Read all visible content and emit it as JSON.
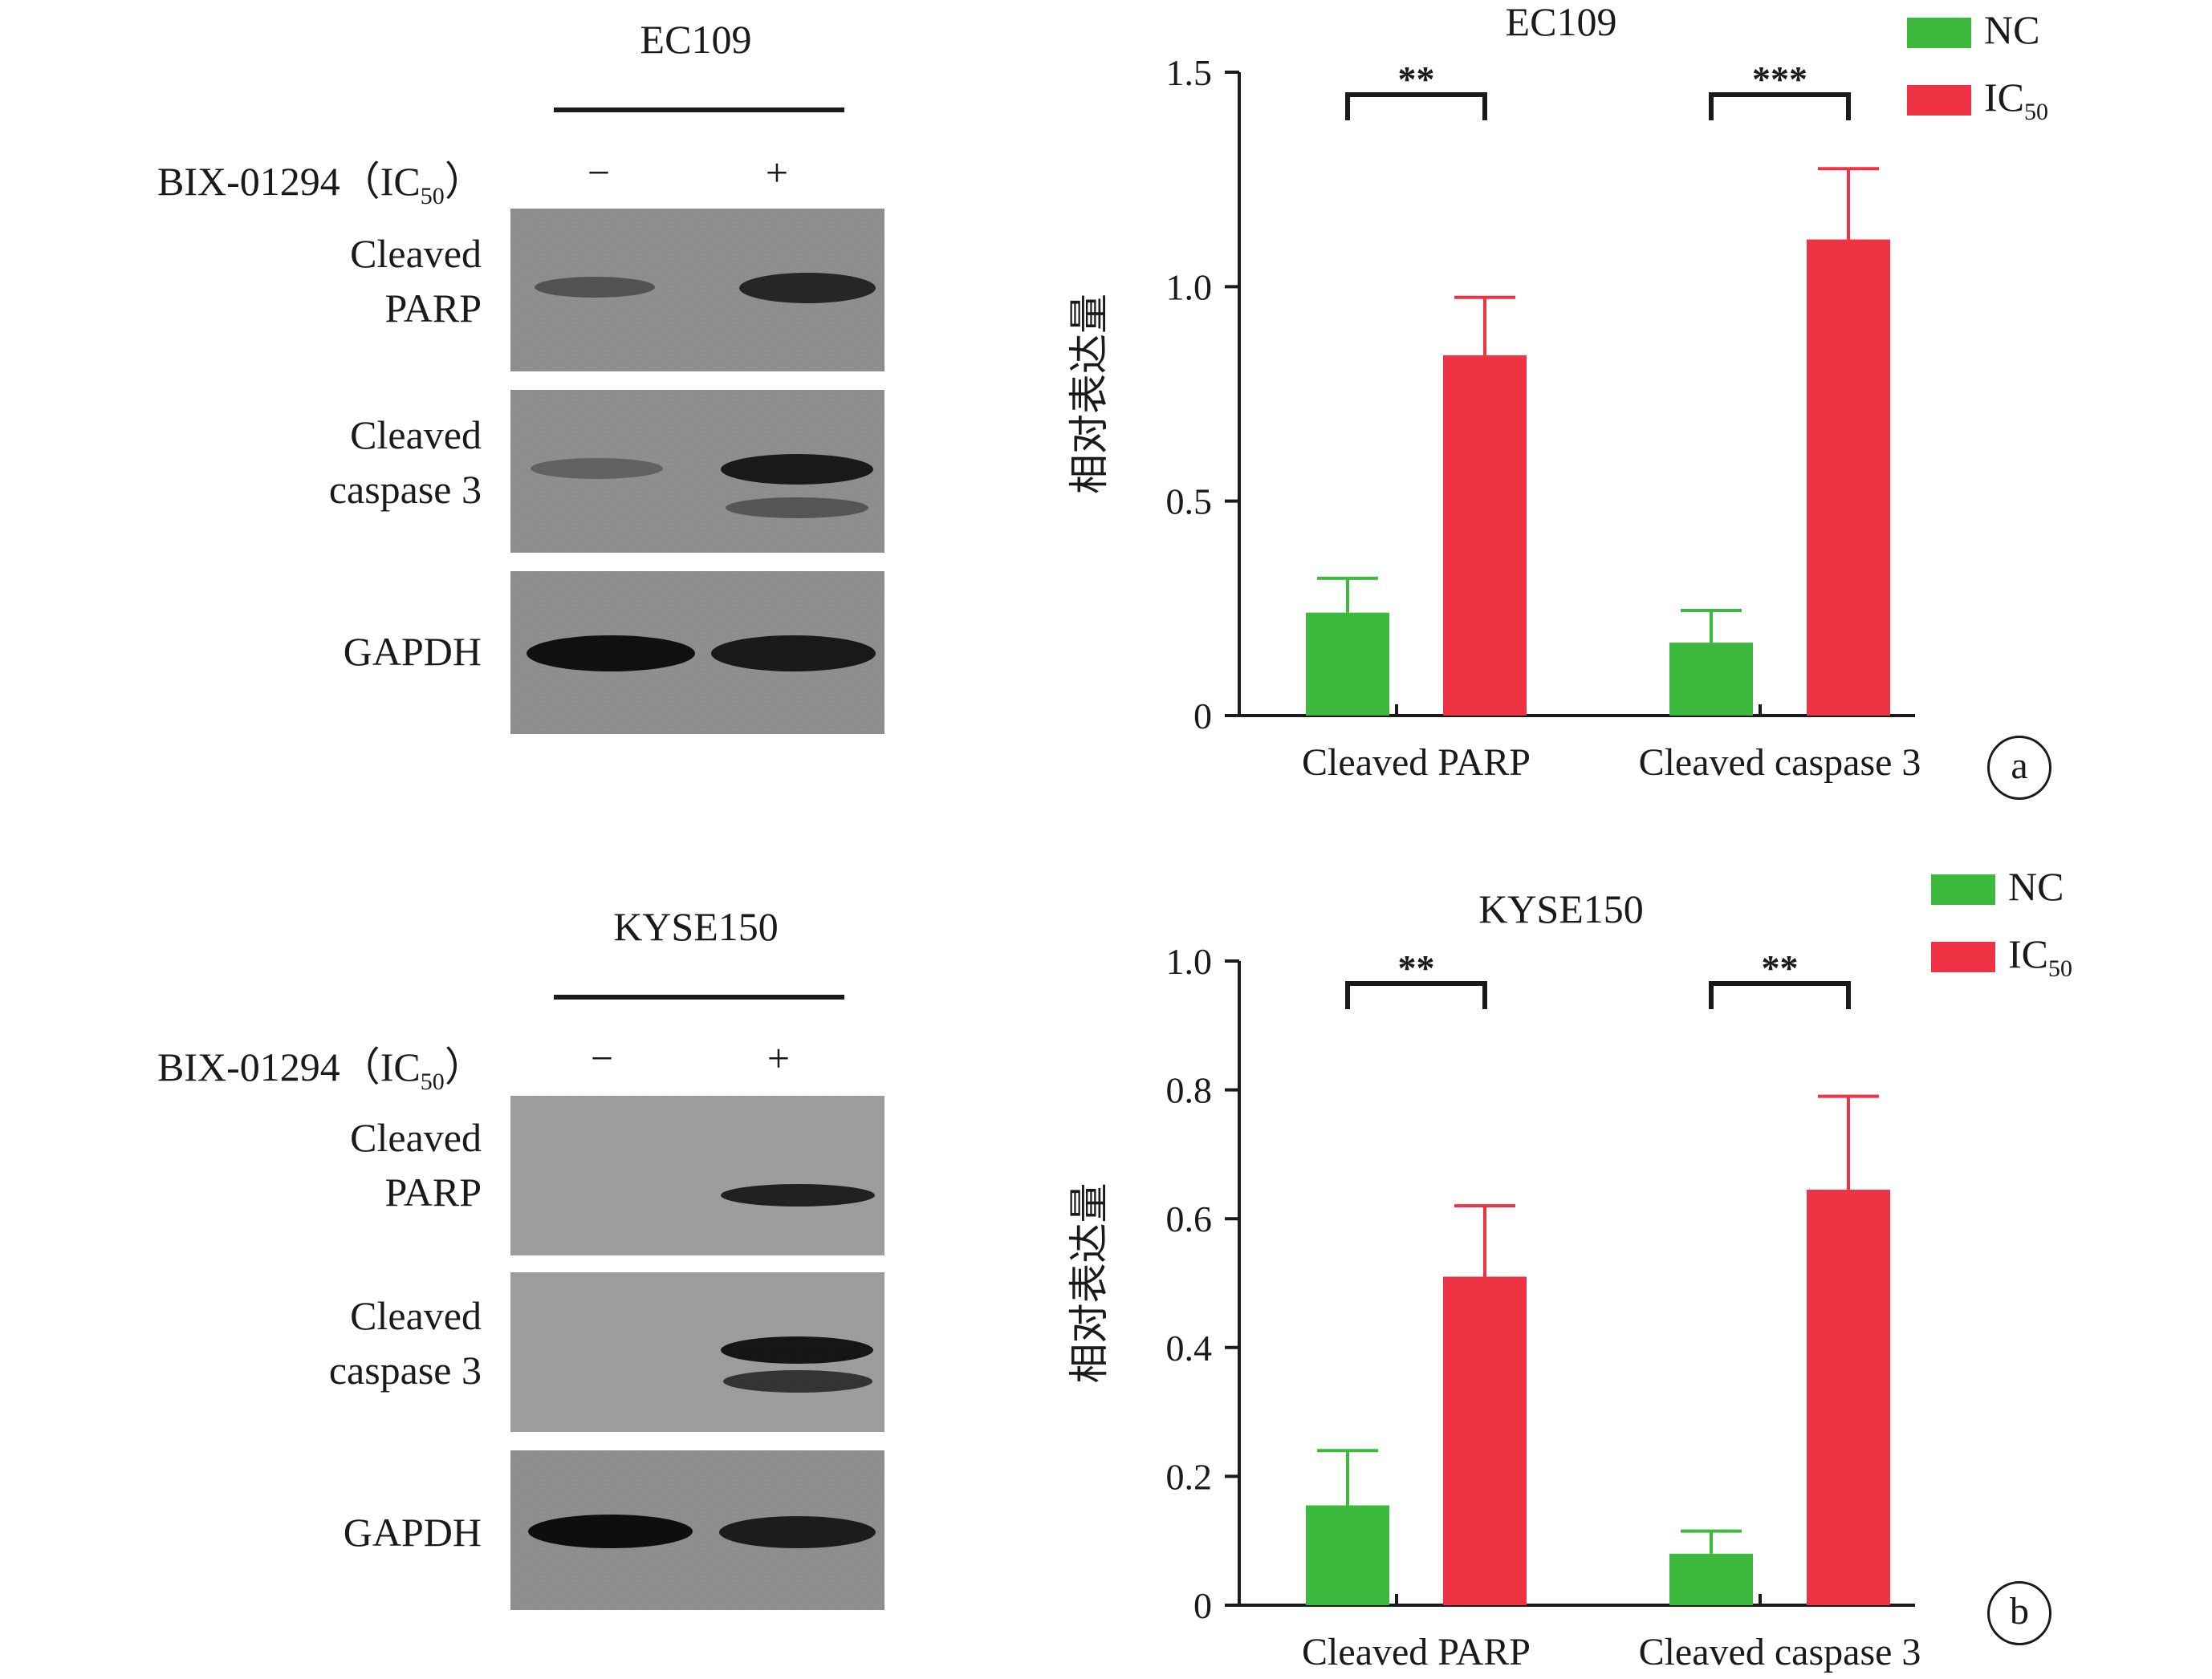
{
  "colors": {
    "nc": "#3dba3d",
    "ic50": "#ee3344",
    "axis": "#1a1a1a"
  },
  "panels": [
    {
      "tag": "a",
      "blot": {
        "cell_line": "EC109",
        "treatment_label": "BIX-01294（IC",
        "treatment_sub": "50",
        "treatment_close": "）",
        "signs": [
          "−",
          "+"
        ],
        "bands": [
          {
            "label_line1": "Cleaved",
            "label_line2": "PARP"
          },
          {
            "label_line1": "Cleaved",
            "label_line2": "caspase 3"
          },
          {
            "label_line1": "GAPDH",
            "label_line2": ""
          }
        ]
      },
      "legend": {
        "nc_label": "NC",
        "ic_label": "IC",
        "ic_sub": "50"
      },
      "chart_data": {
        "type": "bar",
        "title": "EC109",
        "ylabel": "相对表达量",
        "categories": [
          "Cleaved PARP",
          "Cleaved caspase 3"
        ],
        "series": [
          {
            "name": "NC",
            "values": [
              0.24,
              0.17
            ],
            "errors": [
              0.08,
              0.075
            ]
          },
          {
            "name": "IC50",
            "values": [
              0.84,
              1.11
            ],
            "errors": [
              0.135,
              0.165
            ]
          }
        ],
        "ylim": [
          0,
          1.5
        ],
        "yticks": [
          0,
          0.5,
          1.0,
          1.5
        ],
        "ytick_labels": [
          "0",
          "0.5",
          "1.0",
          "1.5"
        ],
        "significance": [
          "**",
          "***"
        ],
        "legend_position": "top-right"
      }
    },
    {
      "tag": "b",
      "blot": {
        "cell_line": "KYSE150",
        "treatment_label": "BIX-01294（IC",
        "treatment_sub": "50",
        "treatment_close": "）",
        "signs": [
          "−",
          "+"
        ],
        "bands": [
          {
            "label_line1": "Cleaved",
            "label_line2": "PARP"
          },
          {
            "label_line1": "Cleaved",
            "label_line2": "caspase 3"
          },
          {
            "label_line1": "GAPDH",
            "label_line2": ""
          }
        ]
      },
      "legend": {
        "nc_label": "NC",
        "ic_label": "IC",
        "ic_sub": "50"
      },
      "chart_data": {
        "type": "bar",
        "title": "KYSE150",
        "ylabel": "相对表达量",
        "categories": [
          "Cleaved PARP",
          "Cleaved caspase 3"
        ],
        "series": [
          {
            "name": "NC",
            "values": [
              0.155,
              0.08
            ],
            "errors": [
              0.085,
              0.035
            ]
          },
          {
            "name": "IC50",
            "values": [
              0.51,
              0.645
            ],
            "errors": [
              0.11,
              0.145
            ]
          }
        ],
        "ylim": [
          0,
          1.0
        ],
        "yticks": [
          0,
          0.2,
          0.4,
          0.6,
          0.8,
          1.0
        ],
        "ytick_labels": [
          "0",
          "0.2",
          "0.4",
          "0.6",
          "0.8",
          "1.0"
        ],
        "significance": [
          "**",
          "**"
        ],
        "legend_position": "top-right"
      }
    }
  ]
}
